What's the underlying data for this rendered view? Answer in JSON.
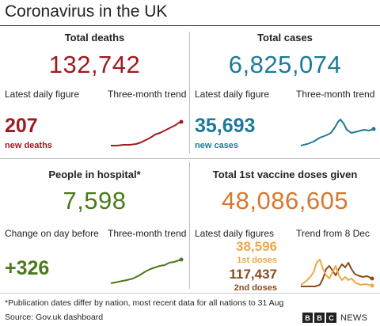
{
  "header": {
    "title": "Coronavirus in the UK"
  },
  "deaths": {
    "heading": "Total deaths",
    "total": "132,742",
    "latest_label": "Latest daily figure",
    "trend_label": "Three-month trend",
    "daily": "207",
    "daily_note": "new deaths",
    "color": "#9e1b22"
  },
  "cases": {
    "heading": "Total cases",
    "total": "6,825,074",
    "latest_label": "Latest daily figure",
    "trend_label": "Three-month trend",
    "daily": "35,693",
    "daily_note": "new cases",
    "color": "#1d7a99"
  },
  "hospital": {
    "heading": "People in hospital*",
    "total": "7,598",
    "change_label": "Change on day before",
    "trend_label": "Three-month trend",
    "change": "+326",
    "color": "#4a7a1c"
  },
  "vaccine": {
    "heading": "Total 1st vaccine doses given",
    "total": "48,086,605",
    "latest_label": "Latest daily figures",
    "trend_label": "Trend from 8 Dec",
    "first_value": "38,596",
    "first_note": "1st doses",
    "second_value": "117,437",
    "second_note": "2nd doses",
    "first_color": "#f0a847",
    "second_color": "#8a4b1f",
    "total_color": "#d9782c"
  },
  "footer": {
    "note": "*Publication dates differ by nation, most recent data for all nations to 31 Aug",
    "source": "Source: Gov.uk dashboard",
    "brand_letters": [
      "B",
      "B",
      "C"
    ],
    "brand_news": "NEWS"
  },
  "icons": {
    "brand": "bbc-news-logo"
  }
}
